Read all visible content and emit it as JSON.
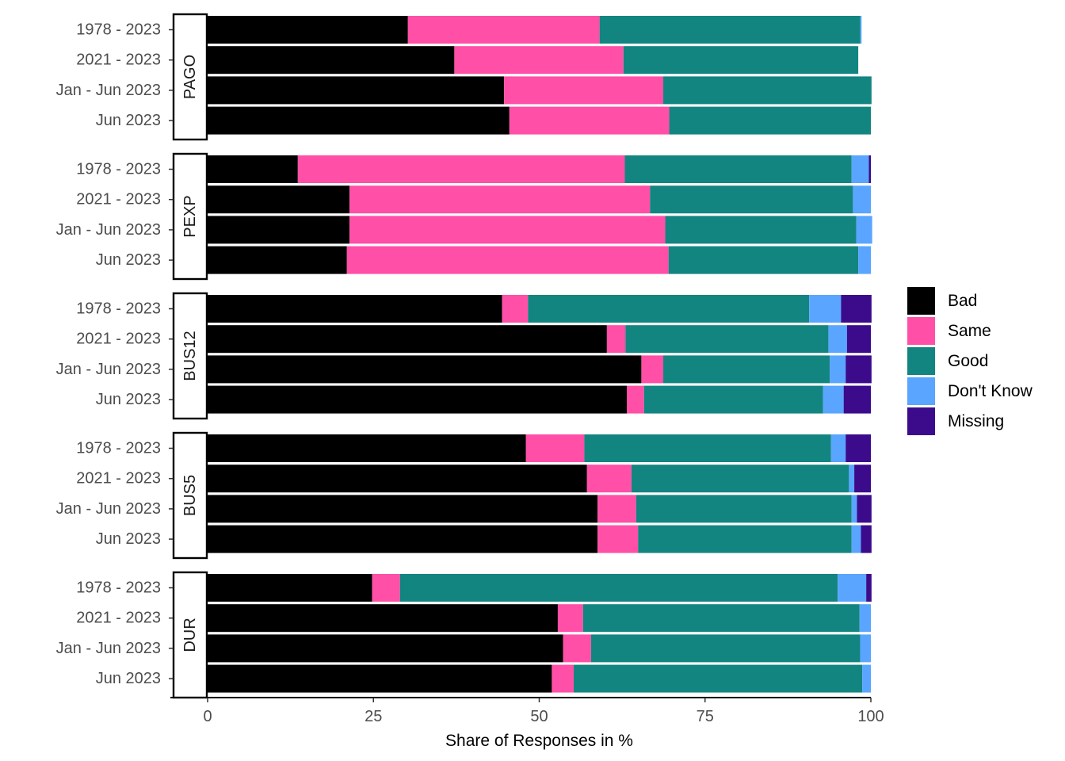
{
  "chart_data": {
    "type": "bar",
    "orientation": "horizontal",
    "stacked": true,
    "xlabel": "Share of Responses in %",
    "ylabel": "",
    "xlim": [
      0,
      100
    ],
    "x_ticks": [
      "0",
      "25",
      "50",
      "75",
      "100"
    ],
    "categories": [
      "1978 - 2023",
      "2021 - 2023",
      "Jan - Jun 2023",
      "Jun 2023"
    ],
    "legend": {
      "position": "right",
      "entries": [
        {
          "name": "Bad",
          "color": "#000000"
        },
        {
          "name": "Same",
          "color": "#ff4fa7"
        },
        {
          "name": "Good",
          "color": "#138580"
        },
        {
          "name": "Don't Know",
          "color": "#5aa5ff"
        },
        {
          "name": "Missing",
          "color": "#3b0b8c"
        }
      ]
    },
    "facets": [
      {
        "label": "PAGO",
        "rows": [
          {
            "category": "1978 - 2023",
            "values": [
              30.2,
              28.9,
              39.3,
              0.2,
              0.0
            ]
          },
          {
            "category": "2021 - 2023",
            "values": [
              37.2,
              25.5,
              35.4,
              0.0,
              0.0
            ]
          },
          {
            "category": "Jan - Jun 2023",
            "values": [
              44.7,
              24.0,
              31.4,
              0.0,
              0.0
            ]
          },
          {
            "category": "Jun 2023",
            "values": [
              45.5,
              24.1,
              30.4,
              0.0,
              0.0
            ]
          }
        ]
      },
      {
        "label": "PEXP",
        "rows": [
          {
            "category": "1978 - 2023",
            "values": [
              13.6,
              49.3,
              34.2,
              2.6,
              0.3
            ]
          },
          {
            "category": "2021 - 2023",
            "values": [
              21.4,
              45.3,
              30.6,
              2.7,
              0.0
            ]
          },
          {
            "category": "Jan - Jun 2023",
            "values": [
              21.4,
              47.6,
              28.8,
              2.4,
              0.0
            ]
          },
          {
            "category": "Jun 2023",
            "values": [
              21.0,
              48.5,
              28.6,
              1.9,
              0.0
            ]
          }
        ]
      },
      {
        "label": "BUS12",
        "rows": [
          {
            "category": "1978 - 2023",
            "values": [
              44.4,
              3.9,
              42.4,
              4.8,
              4.6
            ]
          },
          {
            "category": "2021 - 2023",
            "values": [
              60.2,
              2.8,
              30.6,
              2.8,
              3.6
            ]
          },
          {
            "category": "Jan - Jun 2023",
            "values": [
              65.4,
              3.3,
              25.1,
              2.4,
              3.9
            ]
          },
          {
            "category": "Jun 2023",
            "values": [
              63.2,
              2.6,
              27.0,
              3.1,
              4.1
            ]
          }
        ]
      },
      {
        "label": "BUS5",
        "rows": [
          {
            "category": "1978 - 2023",
            "values": [
              48.0,
              8.8,
              37.2,
              2.2,
              3.8
            ]
          },
          {
            "category": "2021 - 2023",
            "values": [
              57.2,
              6.7,
              32.8,
              0.8,
              2.5
            ]
          },
          {
            "category": "Jan - Jun 2023",
            "values": [
              58.8,
              5.8,
              32.5,
              0.8,
              2.2
            ]
          },
          {
            "category": "Jun 2023",
            "values": [
              58.8,
              6.1,
              32.2,
              1.4,
              1.6
            ]
          }
        ]
      },
      {
        "label": "DUR",
        "rows": [
          {
            "category": "1978 - 2023",
            "values": [
              24.8,
              4.2,
              66.0,
              4.3,
              0.8
            ]
          },
          {
            "category": "2021 - 2023",
            "values": [
              52.8,
              3.8,
              41.7,
              1.7,
              0.0
            ]
          },
          {
            "category": "Jan - Jun 2023",
            "values": [
              53.6,
              4.2,
              40.6,
              1.6,
              0.0
            ]
          },
          {
            "category": "Jun 2023",
            "values": [
              51.9,
              3.3,
              43.5,
              1.3,
              0.0
            ]
          }
        ]
      }
    ]
  }
}
